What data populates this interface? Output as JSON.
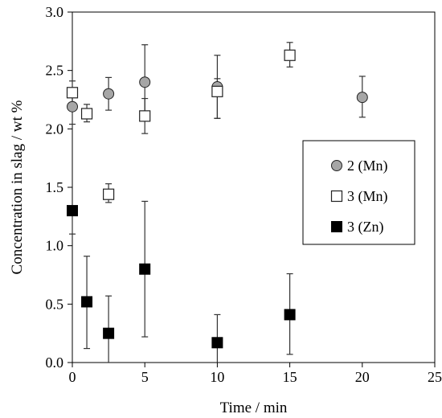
{
  "chart_data": {
    "type": "scatter",
    "xlabel": "Time / min",
    "ylabel": "Concentration in slag / wt %",
    "xlim": [
      0,
      25
    ],
    "ylim": [
      0,
      3.0
    ],
    "x_ticks": [
      "0",
      "5",
      "10",
      "15",
      "20",
      "25"
    ],
    "y_ticks": [
      "0.0",
      "0.5",
      "1.0",
      "1.5",
      "2.0",
      "2.5",
      "3.0"
    ],
    "grid": false,
    "legend_position": "middle-right, boxed",
    "series": [
      {
        "name": "2 (Mn)",
        "marker": "circle",
        "color": "#a6a6a6",
        "points": [
          {
            "x": 0,
            "y": 2.19,
            "err_low": 2.04,
            "err_high": 2.32
          },
          {
            "x": 2.5,
            "y": 2.3,
            "err_low": 2.16,
            "err_high": 2.44
          },
          {
            "x": 5,
            "y": 2.4,
            "err_low": 2.07,
            "err_high": 2.72
          },
          {
            "x": 10,
            "y": 2.36,
            "err_low": 2.09,
            "err_high": 2.63
          },
          {
            "x": 20,
            "y": 2.27,
            "err_low": 2.1,
            "err_high": 2.45
          }
        ]
      },
      {
        "name": "3 (Mn)",
        "marker": "open-square",
        "color": "#ffffff",
        "points": [
          {
            "x": 0,
            "y": 2.31,
            "err_low": 2.21,
            "err_high": 2.41
          },
          {
            "x": 1,
            "y": 2.13,
            "err_low": 2.06,
            "err_high": 2.21
          },
          {
            "x": 2.5,
            "y": 1.44,
            "err_low": 1.37,
            "err_high": 1.53
          },
          {
            "x": 5,
            "y": 2.11,
            "err_low": 1.96,
            "err_high": 2.26
          },
          {
            "x": 10,
            "y": 2.32,
            "err_low": 2.09,
            "err_high": 2.43
          },
          {
            "x": 15,
            "y": 2.63,
            "err_low": 2.53,
            "err_high": 2.74
          }
        ]
      },
      {
        "name": "3 (Zn)",
        "marker": "filled-square",
        "color": "#000000",
        "points": [
          {
            "x": 0,
            "y": 1.3,
            "err_low": 1.1,
            "err_high": 1.3
          },
          {
            "x": 1,
            "y": 0.52,
            "err_low": 0.12,
            "err_high": 0.91
          },
          {
            "x": 2.5,
            "y": 0.25,
            "err_low": 0.0,
            "err_high": 0.57
          },
          {
            "x": 5,
            "y": 0.8,
            "err_low": 0.22,
            "err_high": 1.38
          },
          {
            "x": 10,
            "y": 0.17,
            "err_low": 0.0,
            "err_high": 0.41
          },
          {
            "x": 15,
            "y": 0.41,
            "err_low": 0.07,
            "err_high": 0.76
          }
        ]
      }
    ]
  }
}
